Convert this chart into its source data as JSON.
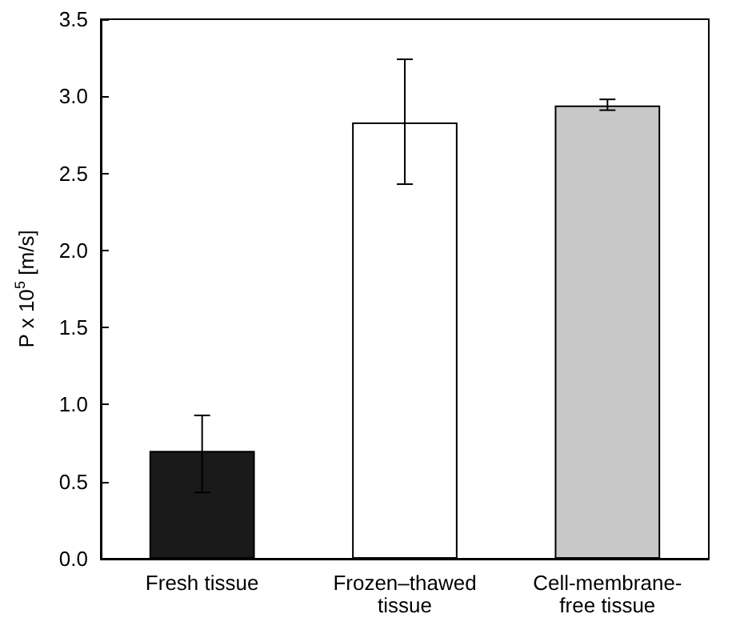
{
  "chart_data": {
    "type": "bar",
    "ylabel": "P x 10$^{5}$ [m/s]",
    "categories": [
      "Fresh tissue",
      "Frozen–thawed tissue",
      "Cell-membrane-free tissue"
    ],
    "values": [
      0.7,
      2.83,
      2.94
    ],
    "colors": [
      "#1a1a1a",
      "#ffffff",
      "#c8c8c8"
    ],
    "errors": [
      [
        0.43,
        0.93
      ],
      [
        2.43,
        3.24
      ],
      [
        2.91,
        2.98
      ]
    ],
    "ylim": [
      0,
      3.5
    ],
    "yticks": [
      {
        "value": 0,
        "label": "0.0"
      },
      {
        "value": 0.5,
        "label": "0.5"
      },
      {
        "value": 1,
        "label": "1.0"
      },
      {
        "value": 1.5,
        "label": "1.5"
      },
      {
        "value": 2,
        "label": "2.0"
      },
      {
        "value": 2.5,
        "label": "2.5"
      },
      {
        "value": 3,
        "label": "3.0"
      },
      {
        "value": 3.5,
        "label": "3.5"
      }
    ],
    "grid": false
  }
}
